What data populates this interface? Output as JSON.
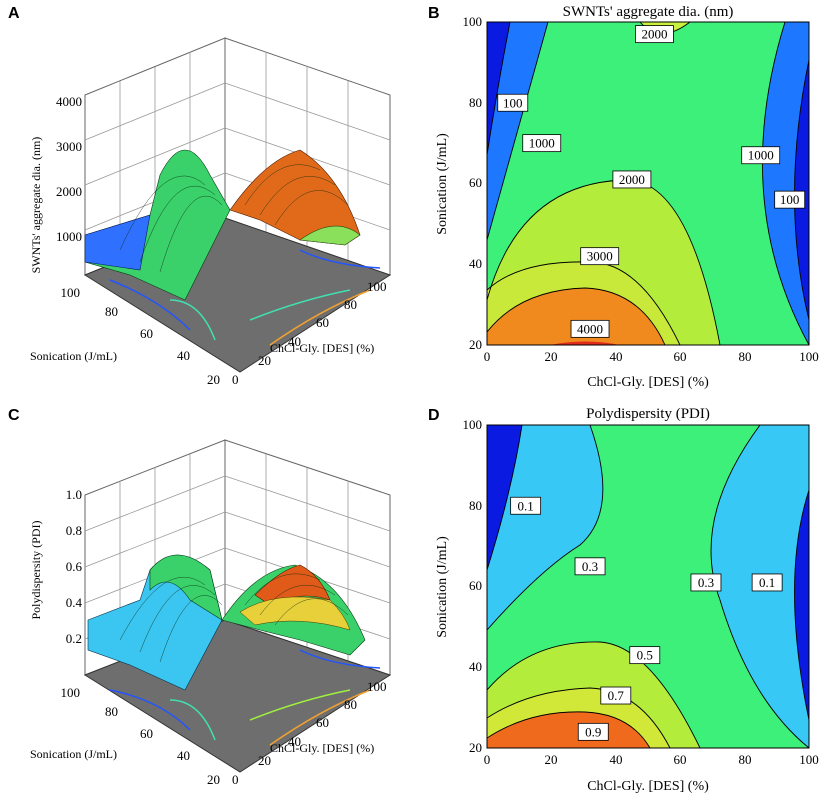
{
  "panels": [
    {
      "letter": "A"
    },
    {
      "letter": "B"
    },
    {
      "letter": "C"
    },
    {
      "letter": "D"
    }
  ],
  "chart_data": [
    {
      "panel": "A",
      "type": "surface3d",
      "zlabel": "SWNTs' aggregate dia. (nm)",
      "xlabel": "ChCl-Gly. [DES] (%)",
      "ylabel": "Sonication (J/mL)",
      "x_ticks": [
        "0",
        "20",
        "40",
        "60",
        "80",
        "100"
      ],
      "y_ticks": [
        "20",
        "40",
        "60",
        "80",
        "100"
      ],
      "z_ticks": [
        "1000",
        "2000",
        "3000",
        "4000"
      ],
      "xlim": [
        0,
        100
      ],
      "ylim": [
        20,
        100
      ],
      "zlim": [
        0,
        4000
      ]
    },
    {
      "panel": "B",
      "type": "contour",
      "title": "SWNTs' aggregate dia. (nm)",
      "xlabel": "ChCl-Gly. [DES] (%)",
      "ylabel": "Sonication (J/mL)",
      "x_ticks": [
        "0",
        "20",
        "40",
        "60",
        "80",
        "100"
      ],
      "y_ticks": [
        "20",
        "40",
        "60",
        "80",
        "100"
      ],
      "xlim": [
        0,
        100
      ],
      "ylim": [
        20,
        100
      ],
      "contour_labels": [
        {
          "text": "2000",
          "x": 52,
          "y": 97
        },
        {
          "text": "100",
          "x": 8,
          "y": 80
        },
        {
          "text": "1000",
          "x": 17,
          "y": 70
        },
        {
          "text": "1000",
          "x": 85,
          "y": 67
        },
        {
          "text": "100",
          "x": 94,
          "y": 56
        },
        {
          "text": "2000",
          "x": 45,
          "y": 61
        },
        {
          "text": "3000",
          "x": 35,
          "y": 42
        },
        {
          "text": "4000",
          "x": 32,
          "y": 24
        }
      ]
    },
    {
      "panel": "C",
      "type": "surface3d",
      "zlabel": "Polydispersity (PDI)",
      "xlabel": "ChCl-Gly. [DES] (%)",
      "ylabel": "Sonication (J/mL)",
      "x_ticks": [
        "0",
        "20",
        "40",
        "60",
        "80",
        "100"
      ],
      "y_ticks": [
        "20",
        "40",
        "60",
        "80",
        "100"
      ],
      "z_ticks": [
        "0.2",
        "0.4",
        "0.6",
        "0.8",
        "1.0"
      ],
      "xlim": [
        0,
        100
      ],
      "ylim": [
        20,
        100
      ],
      "zlim": [
        0,
        1.0
      ]
    },
    {
      "panel": "D",
      "type": "contour",
      "title": "Polydispersity (PDI)",
      "xlabel": "ChCl-Gly. [DES] (%)",
      "ylabel": "Sonication (J/mL)",
      "x_ticks": [
        "0",
        "20",
        "40",
        "60",
        "80",
        "100"
      ],
      "y_ticks": [
        "20",
        "40",
        "60",
        "80",
        "100"
      ],
      "xlim": [
        0,
        100
      ],
      "ylim": [
        20,
        100
      ],
      "contour_labels": [
        {
          "text": "0.1",
          "x": 12,
          "y": 80
        },
        {
          "text": "0.3",
          "x": 32,
          "y": 65
        },
        {
          "text": "0.3",
          "x": 68,
          "y": 61
        },
        {
          "text": "0.1",
          "x": 87,
          "y": 61
        },
        {
          "text": "0.5",
          "x": 49,
          "y": 43
        },
        {
          "text": "0.7",
          "x": 40,
          "y": 33
        },
        {
          "text": "0.9",
          "x": 33,
          "y": 24
        }
      ]
    }
  ]
}
